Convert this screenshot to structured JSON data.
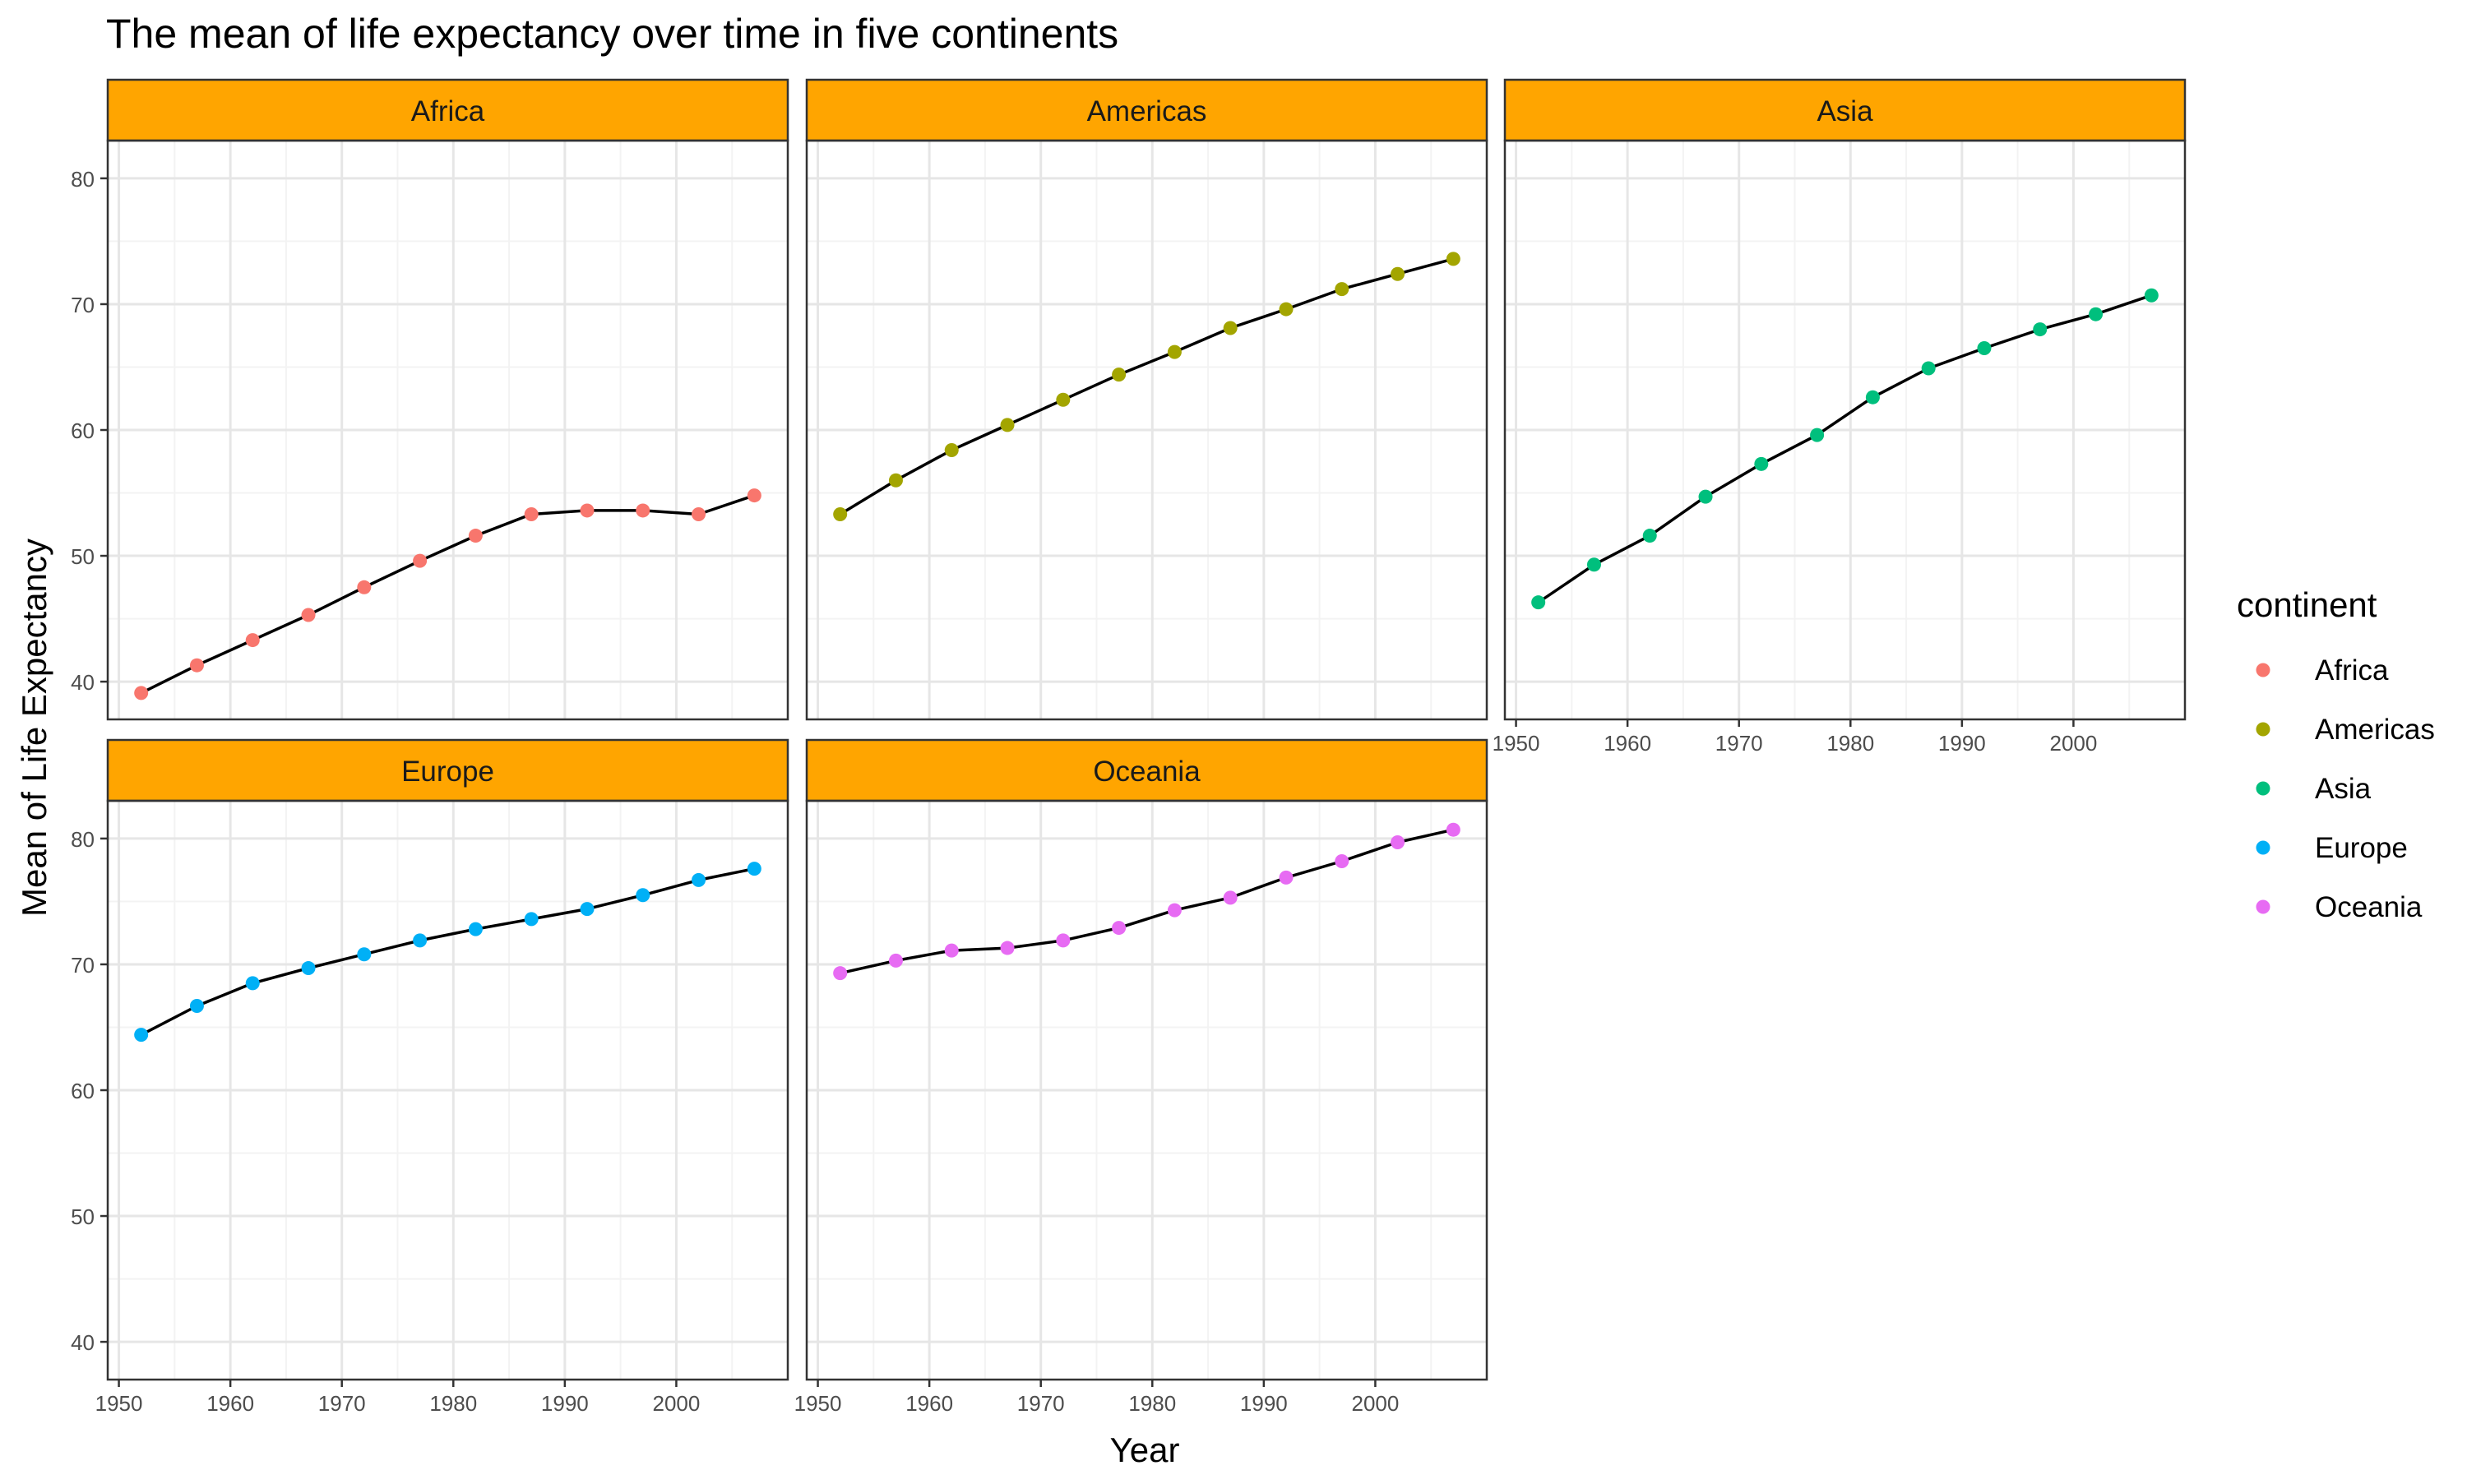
{
  "chart_data": {
    "type": "line",
    "title": "The mean of life expectancy over time in five continents",
    "xlabel": "Year",
    "ylabel": "Mean of Life Expectancy",
    "x": [
      1952,
      1957,
      1962,
      1967,
      1972,
      1977,
      1982,
      1987,
      1992,
      1997,
      2002,
      2007
    ],
    "xlim": [
      1949,
      2010
    ],
    "ylim": [
      37,
      83
    ],
    "x_ticks": [
      1950,
      1960,
      1970,
      1980,
      1990,
      2000
    ],
    "y_ticks": [
      40,
      50,
      60,
      70,
      80
    ],
    "grid": true,
    "facet_strip_color": "#FFA500",
    "line_color": "#000000",
    "legend": {
      "title": "continent",
      "position": "right"
    },
    "series": [
      {
        "name": "Africa",
        "color": "#F8766D",
        "values": [
          39.1,
          41.3,
          43.3,
          45.3,
          47.5,
          49.6,
          51.6,
          53.3,
          53.6,
          53.6,
          53.3,
          54.8
        ]
      },
      {
        "name": "Americas",
        "color": "#A3A500",
        "values": [
          53.3,
          56.0,
          58.4,
          60.4,
          62.4,
          64.4,
          66.2,
          68.1,
          69.6,
          71.2,
          72.4,
          73.6
        ]
      },
      {
        "name": "Asia",
        "color": "#00BF7D",
        "values": [
          46.3,
          49.3,
          51.6,
          54.7,
          57.3,
          59.6,
          62.6,
          64.9,
          66.5,
          68.0,
          69.2,
          70.7
        ]
      },
      {
        "name": "Europe",
        "color": "#00B0F6",
        "values": [
          64.4,
          66.7,
          68.5,
          69.7,
          70.8,
          71.9,
          72.8,
          73.6,
          74.4,
          75.5,
          76.7,
          77.6
        ]
      },
      {
        "name": "Oceania",
        "color": "#E76BF3",
        "values": [
          69.3,
          70.3,
          71.1,
          71.3,
          71.9,
          72.9,
          74.3,
          75.3,
          76.9,
          78.2,
          79.7,
          80.7
        ]
      }
    ]
  }
}
